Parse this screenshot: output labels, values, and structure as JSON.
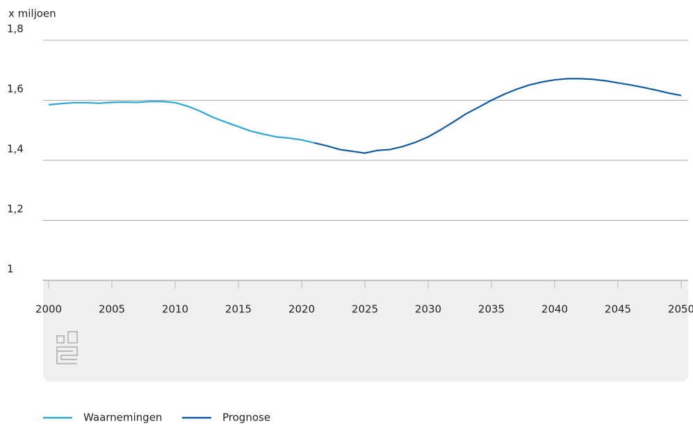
{
  "chart_data": {
    "type": "line",
    "y_axis_label": "x miljoen",
    "x": [
      2000,
      2001,
      2002,
      2003,
      2004,
      2005,
      2006,
      2007,
      2008,
      2009,
      2010,
      2011,
      2012,
      2013,
      2014,
      2015,
      2016,
      2017,
      2018,
      2019,
      2020,
      2021,
      2022,
      2023,
      2024,
      2025,
      2026,
      2027,
      2028,
      2029,
      2030,
      2031,
      2032,
      2033,
      2034,
      2035,
      2036,
      2037,
      2038,
      2039,
      2040,
      2041,
      2042,
      2043,
      2044,
      2045,
      2046,
      2047,
      2048,
      2049,
      2050
    ],
    "series": [
      {
        "name": "Waarnemingen",
        "color": "#2aa7d8",
        "values": [
          1.585,
          1.589,
          1.592,
          1.592,
          1.59,
          1.593,
          1.594,
          1.593,
          1.596,
          1.596,
          1.592,
          1.58,
          1.563,
          1.543,
          1.527,
          1.512,
          1.497,
          1.487,
          1.478,
          1.474,
          1.468,
          1.458,
          null,
          null,
          null,
          null,
          null,
          null,
          null,
          null,
          null,
          null,
          null,
          null,
          null,
          null,
          null,
          null,
          null,
          null,
          null,
          null,
          null,
          null,
          null,
          null,
          null,
          null,
          null,
          null,
          null
        ]
      },
      {
        "name": "Prognose",
        "color": "#0e5aa7",
        "values": [
          null,
          null,
          null,
          null,
          null,
          null,
          null,
          null,
          null,
          null,
          null,
          null,
          null,
          null,
          null,
          null,
          null,
          null,
          null,
          null,
          null,
          1.458,
          1.448,
          1.436,
          1.43,
          1.424,
          1.433,
          1.436,
          1.446,
          1.46,
          1.478,
          1.502,
          1.528,
          1.555,
          1.577,
          1.6,
          1.62,
          1.637,
          1.651,
          1.661,
          1.668,
          1.672,
          1.672,
          1.67,
          1.665,
          1.658,
          1.651,
          1.643,
          1.634,
          1.624,
          1.616
        ]
      }
    ],
    "xlim": [
      2000,
      2050
    ],
    "xticks": [
      2000,
      2005,
      2010,
      2015,
      2020,
      2025,
      2030,
      2035,
      2040,
      2045,
      2050
    ],
    "ylim": [
      1,
      1.8
    ],
    "yticks": [
      1,
      {
        "value": 1.2,
        "label": "1,2"
      },
      {
        "value": 1.4,
        "label": "1,4"
      },
      {
        "value": 1.6,
        "label": "1,6"
      },
      {
        "value": 1.8,
        "label": "1,8"
      }
    ],
    "grid": true,
    "legend": "bottom"
  }
}
